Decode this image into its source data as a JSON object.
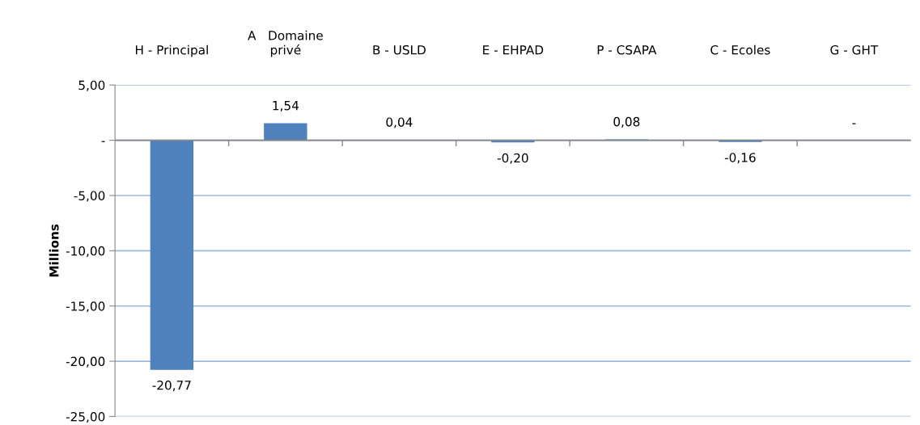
{
  "chart_data": {
    "type": "bar",
    "ylabel": "Millions",
    "categories": [
      "H - Principal",
      "A   Domaine\nprivé",
      "B - USLD",
      "E - EHPAD",
      "P - CSAPA",
      "C - Ecoles",
      "G - GHT"
    ],
    "values": [
      -20.77,
      1.54,
      0.04,
      -0.2,
      0.08,
      -0.16,
      0
    ],
    "value_labels": [
      "-20,77",
      "1,54",
      "0,04",
      "-0,20",
      "0,08",
      "-0,16",
      "-"
    ],
    "color": "#4f81bd",
    "ylim": [
      -25,
      5
    ],
    "yticks": [
      {
        "value": 5,
        "label": "5,00"
      },
      {
        "value": 0,
        "label": "-"
      },
      {
        "value": -5,
        "label": "-5,00"
      },
      {
        "value": -10,
        "label": "-10,00"
      },
      {
        "value": -15,
        "label": "-15,00"
      },
      {
        "value": -20,
        "label": "-20,00"
      },
      {
        "value": -25,
        "label": "-25,00"
      }
    ],
    "grid": "y",
    "legend": false
  }
}
